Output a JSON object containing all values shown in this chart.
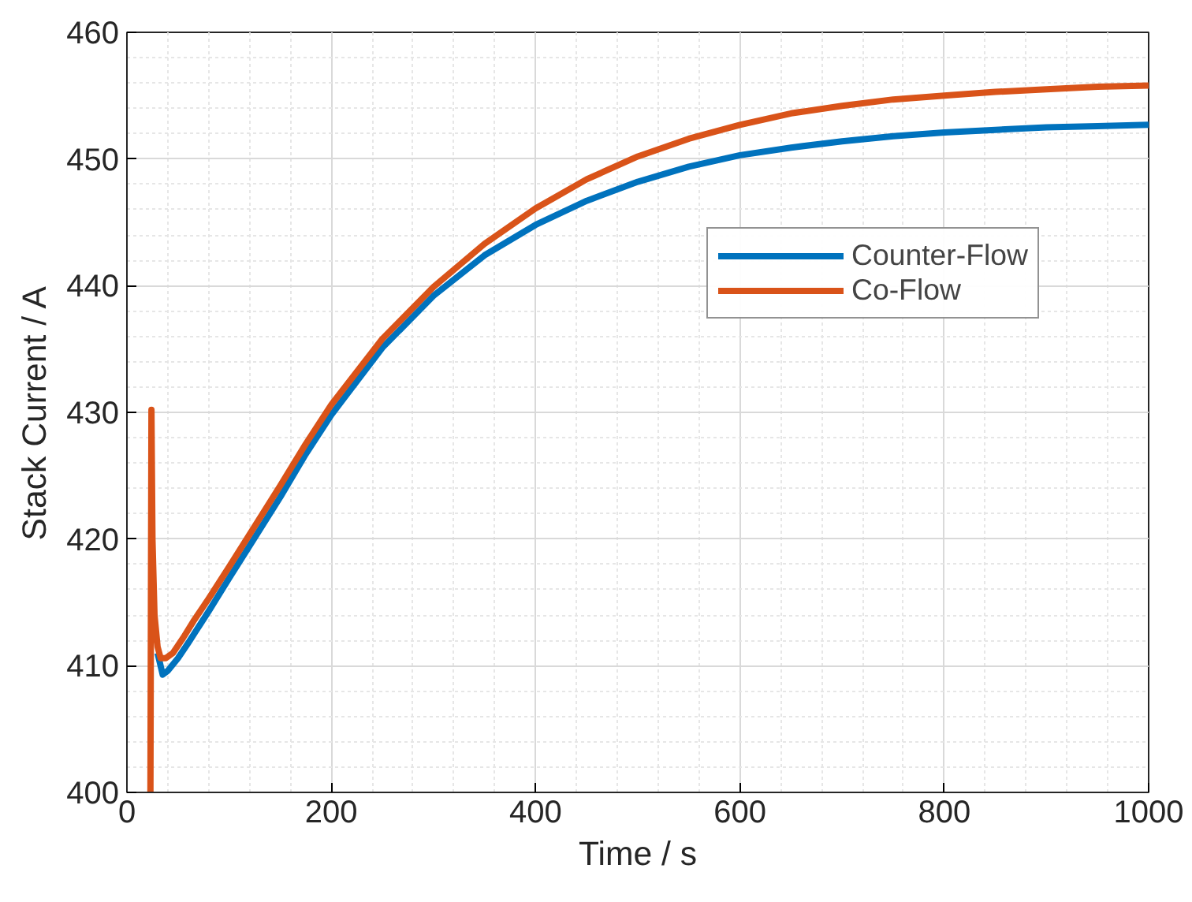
{
  "chart_data": {
    "type": "line",
    "xlabel": "Time / s",
    "ylabel": "Stack Current / A",
    "xlim": [
      0,
      1000
    ],
    "ylim": [
      400,
      460
    ],
    "xticks": [
      0,
      200,
      400,
      600,
      800,
      1000
    ],
    "yticks": [
      400,
      410,
      420,
      430,
      440,
      450,
      460
    ],
    "grid": true,
    "legend": "top right",
    "line_style": "solid",
    "marker": "none",
    "series": [
      {
        "name": "Counter-Flow",
        "color": "#0072bd",
        "x": [
          30,
          35,
          40,
          50,
          60,
          80,
          100,
          125,
          150,
          175,
          200,
          250,
          300,
          350,
          400,
          450,
          500,
          550,
          600,
          650,
          700,
          750,
          800,
          850,
          900,
          950,
          1000
        ],
        "values": [
          411,
          409.3,
          409.6,
          410.6,
          411.8,
          414.3,
          416.9,
          420.1,
          423.3,
          426.7,
          429.8,
          435.1,
          439.2,
          442.4,
          444.8,
          446.7,
          448.2,
          449.4,
          450.3,
          450.9,
          451.4,
          451.8,
          452.1,
          452.3,
          452.5,
          452.6,
          452.7
        ]
      },
      {
        "name": "Co-Flow",
        "color": "#d95319",
        "x": [
          23,
          24,
          25,
          27,
          30,
          33,
          38,
          45,
          55,
          65,
          80,
          100,
          125,
          150,
          175,
          200,
          250,
          300,
          350,
          400,
          450,
          500,
          550,
          600,
          650,
          700,
          750,
          800,
          850,
          900,
          950,
          1000
        ],
        "values": [
          400,
          430.2,
          420,
          414,
          411.5,
          410.6,
          410.6,
          411,
          412.2,
          413.5,
          415.3,
          417.8,
          421,
          424.2,
          427.5,
          430.6,
          435.8,
          439.9,
          443.3,
          446.1,
          448.4,
          450.2,
          451.6,
          452.7,
          453.6,
          454.2,
          454.7,
          455,
          455.3,
          455.5,
          455.7,
          455.8
        ]
      }
    ]
  }
}
